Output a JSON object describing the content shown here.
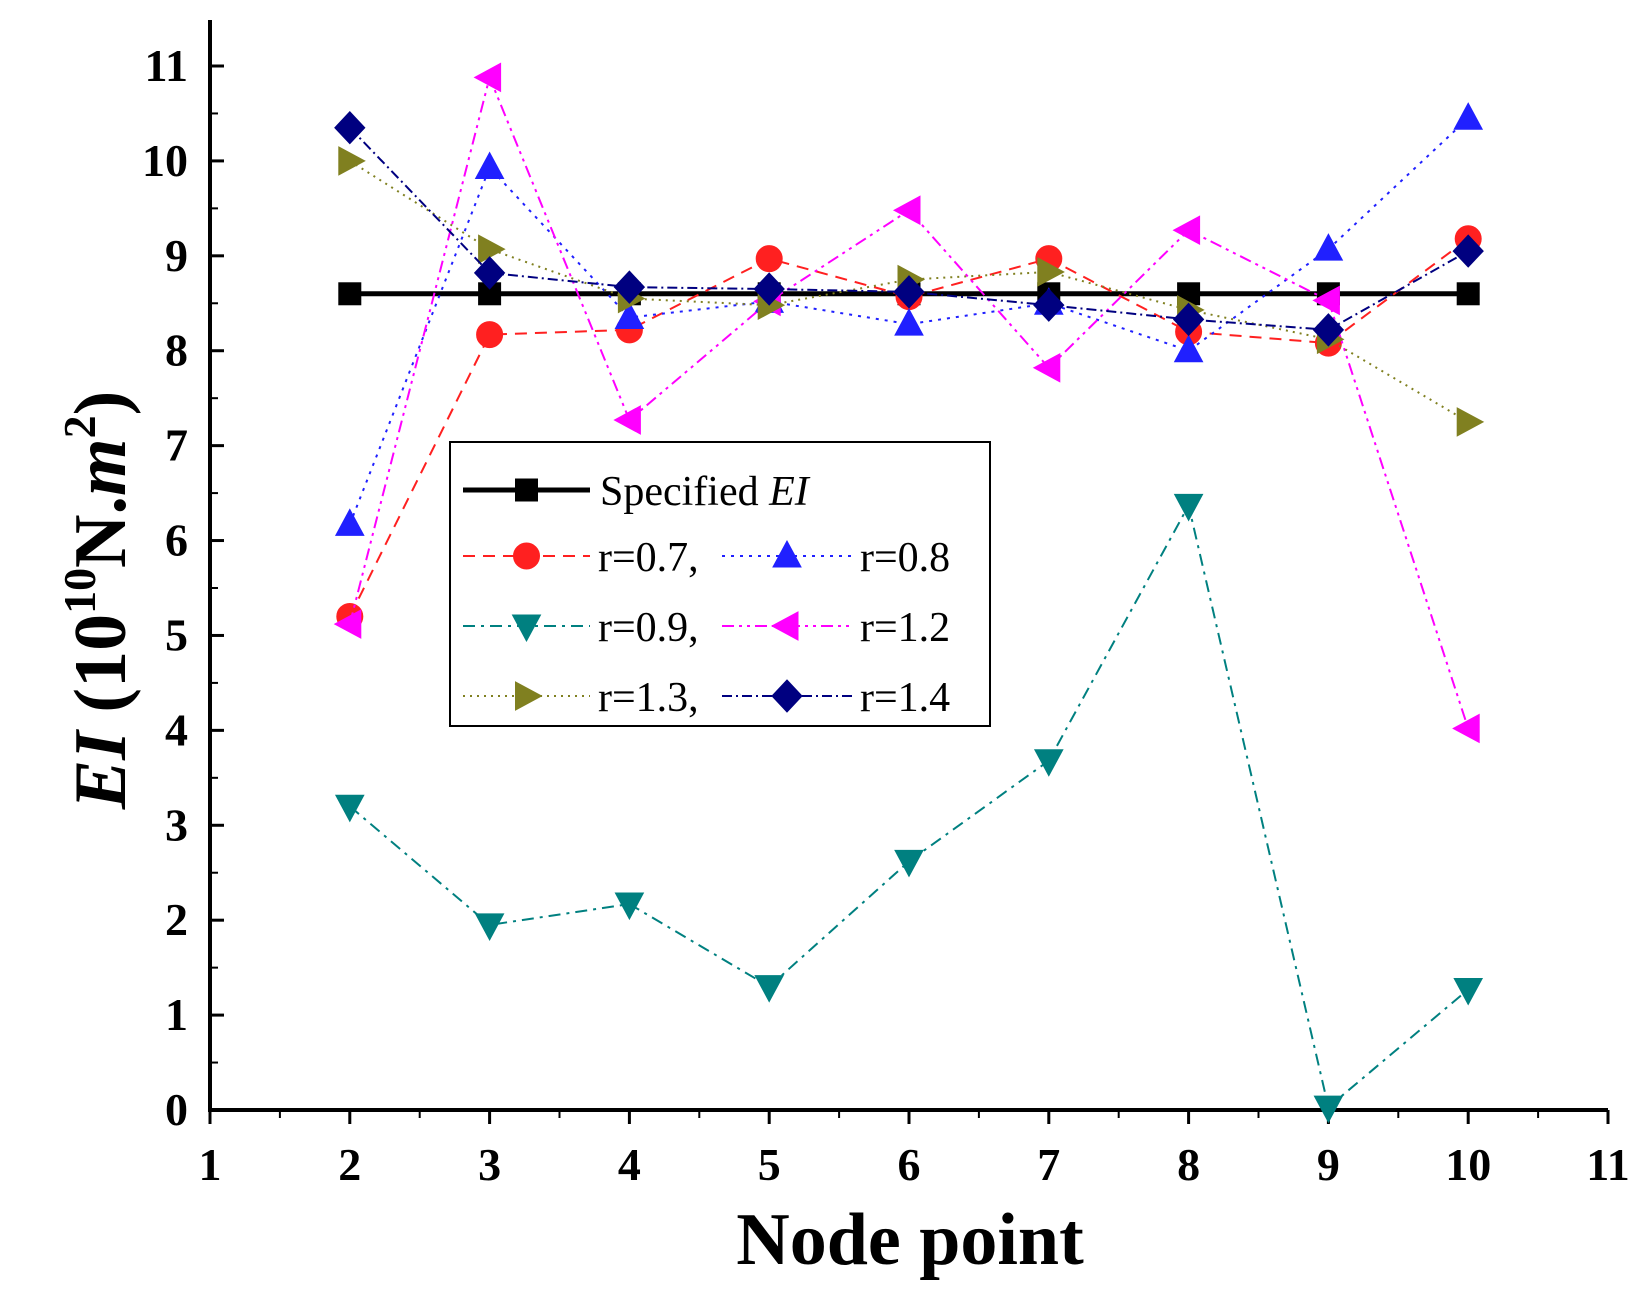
{
  "chart_data": {
    "type": "line",
    "xlabel": "Node point",
    "ylabel": {
      "prefix": "EI",
      "unit_open": " (10",
      "unit_exp": "10",
      "unit_mid": "N.",
      "unit_m": "m",
      "unit_m_exp": "2",
      "unit_close": ")"
    },
    "xlim": [
      1,
      11
    ],
    "ylim": [
      0,
      11
    ],
    "xticks": [
      1,
      2,
      3,
      4,
      5,
      6,
      7,
      8,
      9,
      10,
      11
    ],
    "yticks": [
      0,
      1,
      2,
      3,
      4,
      5,
      6,
      7,
      8,
      9,
      10,
      11
    ],
    "x": [
      2,
      3,
      4,
      5,
      6,
      7,
      8,
      9,
      10
    ],
    "series": [
      {
        "name": "Specified EI",
        "color": "#000000",
        "marker": "square",
        "style": "solid",
        "values": [
          8.6,
          8.6,
          8.6,
          8.6,
          8.6,
          8.6,
          8.6,
          8.6,
          8.6
        ]
      },
      {
        "name": "r=0.7",
        "color": "#ff2020",
        "marker": "circle",
        "style": "dash",
        "values": [
          5.2,
          8.17,
          8.22,
          8.97,
          8.57,
          8.97,
          8.2,
          8.08,
          9.18
        ]
      },
      {
        "name": "r=0.8",
        "color": "#2020ff",
        "marker": "triangle-up",
        "style": "dot",
        "values": [
          6.17,
          9.93,
          8.35,
          8.52,
          8.28,
          8.5,
          8.0,
          9.07,
          10.45
        ]
      },
      {
        "name": "r=0.9",
        "color": "#008080",
        "marker": "triangle-down",
        "style": "dashdot",
        "values": [
          3.2,
          1.95,
          2.17,
          1.3,
          2.62,
          3.68,
          6.37,
          0.03,
          1.27
        ]
      },
      {
        "name": "r=1.2",
        "color": "#ff00ff",
        "marker": "triangle-left",
        "style": "dashdotdot",
        "values": [
          5.12,
          10.88,
          7.27,
          8.52,
          9.48,
          7.82,
          9.27,
          8.53,
          4.02
        ]
      },
      {
        "name": "r=1.3",
        "color": "#808020",
        "marker": "triangle-right",
        "style": "shortdot",
        "values": [
          10.0,
          9.07,
          8.55,
          8.48,
          8.75,
          8.83,
          8.43,
          8.12,
          7.25
        ]
      },
      {
        "name": "r=1.4",
        "color": "#000080",
        "marker": "diamond",
        "style": "dashdot2",
        "values": [
          10.35,
          8.82,
          8.67,
          8.65,
          8.62,
          8.48,
          8.33,
          8.22,
          9.05
        ]
      }
    ],
    "legend": {
      "position": "center-left",
      "entries": [
        {
          "series": 0,
          "label": "Specified ",
          "label_italic": "EI"
        },
        {
          "series": 1,
          "label": "r=0.7,"
        },
        {
          "series": 2,
          "label": "r=0.8"
        },
        {
          "series": 3,
          "label": "r=0.9,"
        },
        {
          "series": 4,
          "label": "r=1.2"
        },
        {
          "series": 5,
          "label": "r=1.3,"
        },
        {
          "series": 6,
          "label": "r=1.4"
        }
      ]
    }
  }
}
